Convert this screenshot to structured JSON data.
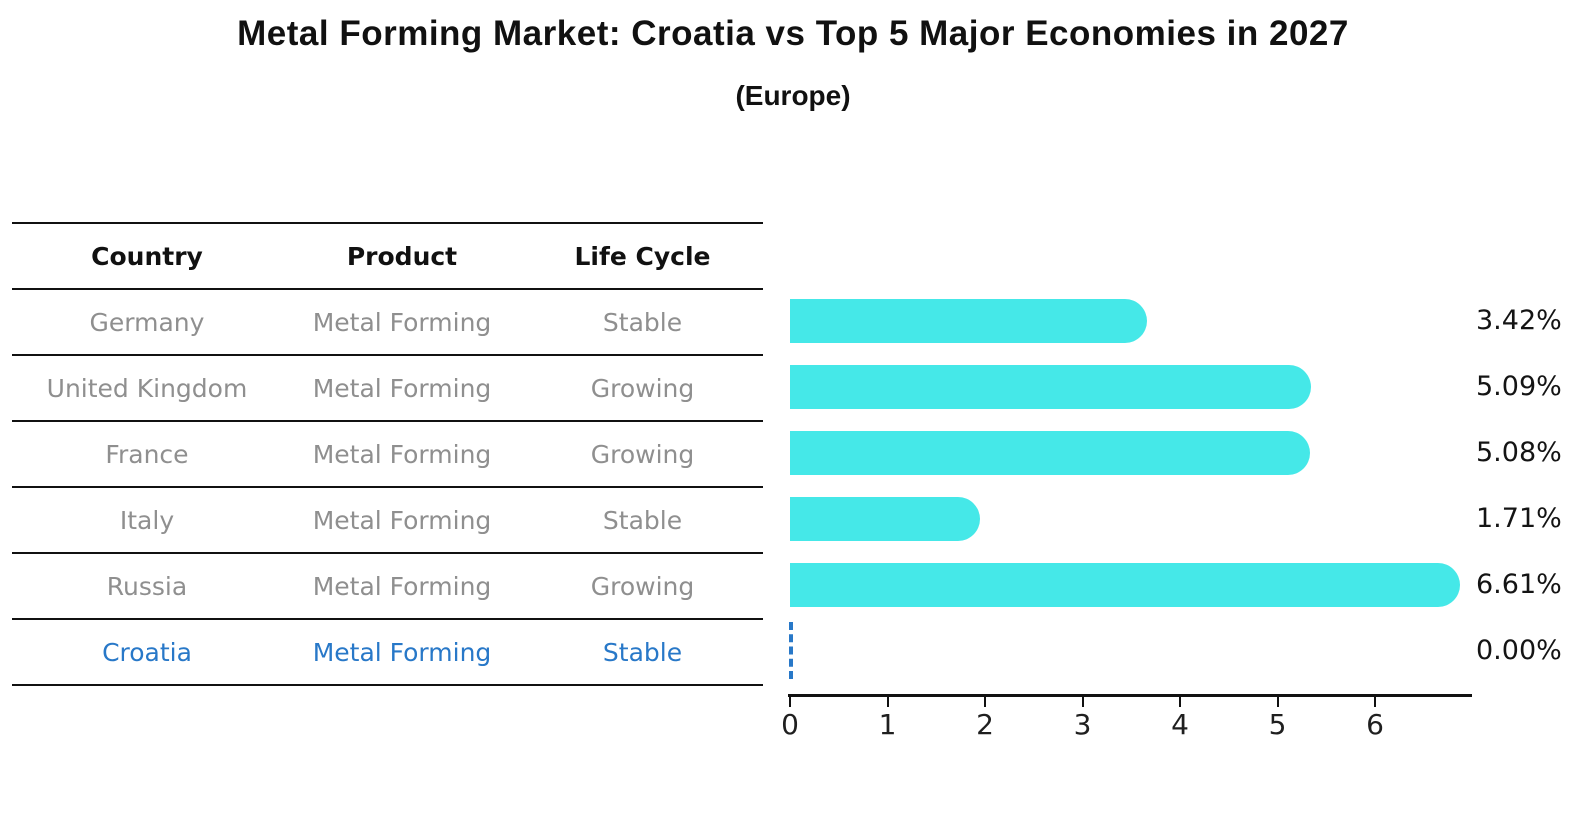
{
  "page": {
    "title": "Metal Forming Market: Croatia vs Top 5 Major Economies in 2027",
    "subtitle": "(Europe)"
  },
  "table": {
    "headers": [
      "Country",
      "Product",
      "Life Cycle"
    ],
    "rows": [
      {
        "country": "Germany",
        "product": "Metal Forming",
        "life_cycle": "Stable",
        "highlight": false
      },
      {
        "country": "United Kingdom",
        "product": "Metal Forming",
        "life_cycle": "Growing",
        "highlight": false
      },
      {
        "country": "France",
        "product": "Metal Forming",
        "life_cycle": "Growing",
        "highlight": false
      },
      {
        "country": "Italy",
        "product": "Metal Forming",
        "life_cycle": "Stable",
        "highlight": false
      },
      {
        "country": "Russia",
        "product": "Metal Forming",
        "life_cycle": "Growing",
        "highlight": false
      },
      {
        "country": "Croatia",
        "product": "Metal Forming",
        "life_cycle": "Stable",
        "highlight": true
      }
    ]
  },
  "chart_data": {
    "type": "bar",
    "orientation": "horizontal",
    "title": "Metal Forming Market: Croatia vs Top 5 Major Economies in 2027",
    "subtitle": "(Europe)",
    "categories": [
      "Germany",
      "United Kingdom",
      "France",
      "Italy",
      "Russia",
      "Croatia"
    ],
    "values": [
      3.42,
      5.09,
      5.08,
      1.71,
      6.61,
      0.0
    ],
    "value_labels": [
      "3.42%",
      "5.09%",
      "5.08%",
      "1.71%",
      "6.61%",
      "0.00%"
    ],
    "xlabel": "",
    "ylabel": "",
    "xlim": [
      0,
      7
    ],
    "x_ticks": [
      0,
      1,
      2,
      3,
      4,
      5,
      6
    ],
    "grid": false,
    "legend": false,
    "bar_color": "#45e8e8",
    "highlight_color": "#2878c8",
    "zero_marker_style": "dashed-line"
  }
}
